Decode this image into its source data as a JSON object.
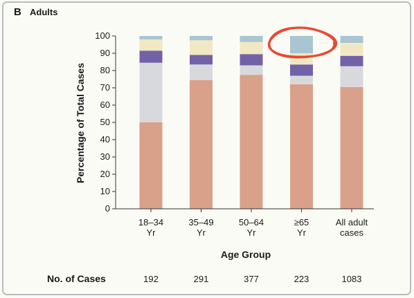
{
  "panel": {
    "letter": "B",
    "title": "Adults"
  },
  "counts_label": "No. of Cases",
  "counts": [
    "192",
    "291",
    "377",
    "223",
    "1083"
  ],
  "colors": {
    "background": "#fbfbf6",
    "frame": "#b7bcc0",
    "highlight": "#e8351f",
    "series": [
      "#d9a08a",
      "#d8d9dc",
      "#7361a8",
      "#f1e8c3",
      "#a9c5d1"
    ]
  },
  "chart_data": {
    "type": "bar",
    "stacked": true,
    "categories": [
      [
        "18–34",
        "Yr"
      ],
      [
        "35–49",
        "Yr"
      ],
      [
        "50–64",
        "Yr"
      ],
      [
        "≥65",
        "Yr"
      ],
      [
        "All adult",
        "cases"
      ]
    ],
    "xlabel": "Age Group",
    "ylabel": "Percentage of Total Cases",
    "ylim": [
      0,
      100
    ],
    "yticks": [
      0,
      10,
      20,
      30,
      40,
      50,
      60,
      70,
      80,
      90,
      100
    ],
    "grid": false,
    "legend": null,
    "series": [
      {
        "values": [
          50,
          74.5,
          77.5,
          72,
          70.5
        ]
      },
      {
        "values": [
          34.5,
          9,
          5.5,
          5,
          12
        ]
      },
      {
        "values": [
          7,
          5.5,
          6.5,
          6.5,
          6
        ]
      },
      {
        "values": [
          6.5,
          8.5,
          7,
          6.5,
          7.5
        ]
      },
      {
        "values": [
          2,
          2.5,
          3.5,
          10,
          4
        ]
      }
    ],
    "annotations": [
      {
        "type": "hand-drawn-circle",
        "category_index": 3,
        "y_center": 96,
        "color": "#e8351f"
      }
    ]
  }
}
